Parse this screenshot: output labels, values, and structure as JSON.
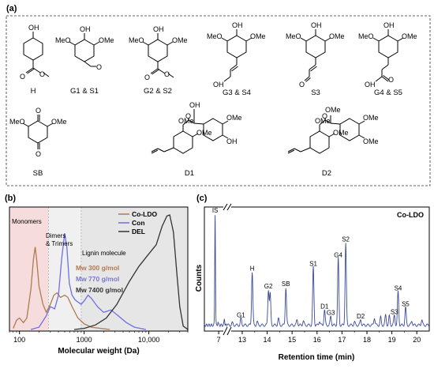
{
  "panel_a": {
    "label": "(a)",
    "structures": [
      {
        "id": "H",
        "label": "H"
      },
      {
        "id": "G1S1",
        "label": "G1 & S1"
      },
      {
        "id": "G2S2",
        "label": "G2 & S2"
      },
      {
        "id": "G3S4",
        "label": "G3 & S4"
      },
      {
        "id": "S3",
        "label": "S3"
      },
      {
        "id": "G4S5",
        "label": "G4 & S5"
      },
      {
        "id": "SB",
        "label": "SB"
      },
      {
        "id": "D1",
        "label": "D1"
      },
      {
        "id": "D2",
        "label": "D2"
      }
    ],
    "atoms": {
      "oh": "OH",
      "ome": "OMe",
      "meo": "MeO",
      "o": "O",
      "oh_short": "OH"
    }
  },
  "chart_data": [
    {
      "type": "line",
      "panel_label": "(b)",
      "xlabel": "Molecular weight (Da)",
      "ylabel": "",
      "xscale": "log",
      "xlim": [
        70,
        40000
      ],
      "xticks": [
        100,
        1000,
        10000
      ],
      "xtick_labels": [
        "100",
        "1000",
        "10,000"
      ],
      "regions": [
        {
          "label": "Monomers",
          "from": 70,
          "to": 280,
          "color": "#f6dcdc"
        },
        {
          "label": "Dimers\n& Trimers",
          "from": 280,
          "to": 900,
          "color": "#f0f0f0"
        },
        {
          "label": "Lignin molecule",
          "from": 900,
          "to": 40000,
          "color": "#e6e6e6"
        }
      ],
      "region_labels": [
        "Monomers",
        "Dimers",
        "& Trimers",
        "Lignin molecule"
      ],
      "legend": {
        "position": "top-right"
      },
      "annotations": [
        {
          "text": "Mw 300 g/mol",
          "color": "#b07a52"
        },
        {
          "text": "Mw 770 g/mol",
          "color": "#7b79c8"
        },
        {
          "text": "Mw 7400 g/mol",
          "color": "#333333"
        }
      ],
      "series": [
        {
          "name": "Co-LDO",
          "color": "#b07a52",
          "points": [
            [
              80,
              0.01
            ],
            [
              90,
              0.08
            ],
            [
              100,
              0.1
            ],
            [
              115,
              0.06
            ],
            [
              130,
              0.1
            ],
            [
              150,
              0.35
            ],
            [
              165,
              0.62
            ],
            [
              175,
              0.72
            ],
            [
              185,
              0.6
            ],
            [
              200,
              0.38
            ],
            [
              230,
              0.22
            ],
            [
              260,
              0.15
            ],
            [
              300,
              0.22
            ],
            [
              340,
              0.3
            ],
            [
              380,
              0.32
            ],
            [
              430,
              0.28
            ],
            [
              500,
              0.3
            ],
            [
              560,
              0.28
            ],
            [
              650,
              0.2
            ],
            [
              800,
              0.1
            ],
            [
              1000,
              0.05
            ],
            [
              1300,
              0.02
            ],
            [
              1800,
              0.01
            ],
            [
              2500,
              0.0
            ]
          ]
        },
        {
          "name": "Con",
          "color": "#6f6fe6",
          "points": [
            [
              150,
              0.0
            ],
            [
              200,
              0.02
            ],
            [
              260,
              0.12
            ],
            [
              300,
              0.2
            ],
            [
              350,
              0.18
            ],
            [
              400,
              0.3
            ],
            [
              450,
              0.62
            ],
            [
              500,
              0.84
            ],
            [
              540,
              0.72
            ],
            [
              590,
              0.4
            ],
            [
              650,
              0.3
            ],
            [
              720,
              0.26
            ],
            [
              800,
              0.24
            ],
            [
              900,
              0.22
            ],
            [
              1000,
              0.25
            ],
            [
              1150,
              0.3
            ],
            [
              1300,
              0.27
            ],
            [
              1600,
              0.2
            ],
            [
              2000,
              0.15
            ],
            [
              2600,
              0.17
            ],
            [
              3200,
              0.13
            ],
            [
              4500,
              0.06
            ],
            [
              6000,
              0.02
            ],
            [
              9000,
              0.0
            ]
          ]
        },
        {
          "name": "DEL",
          "color": "#333333",
          "points": [
            [
              700,
              0.0
            ],
            [
              1000,
              0.01
            ],
            [
              1500,
              0.04
            ],
            [
              2200,
              0.1
            ],
            [
              3200,
              0.22
            ],
            [
              5000,
              0.42
            ],
            [
              7000,
              0.55
            ],
            [
              10000,
              0.66
            ],
            [
              13000,
              0.74
            ],
            [
              16000,
              0.9
            ],
            [
              19000,
              0.99
            ],
            [
              21000,
              1.0
            ],
            [
              24000,
              0.85
            ],
            [
              27000,
              0.5
            ],
            [
              30000,
              0.2
            ],
            [
              34000,
              0.03
            ],
            [
              40000,
              0.0
            ]
          ]
        }
      ]
    },
    {
      "type": "line",
      "panel_label": "(c)",
      "title": "Co-LDO",
      "xlabel": "Retention time (min)",
      "ylabel": "Counts",
      "x_breaks": [
        {
          "from": 7.6,
          "to": 12.4
        }
      ],
      "xticks": [
        7,
        13,
        14,
        15,
        16,
        17,
        18,
        19,
        20
      ],
      "xtick_labels": [
        "7",
        "13",
        "14",
        "15",
        "16",
        "17",
        "18",
        "19",
        "20"
      ],
      "series": [
        {
          "name": "",
          "color": "#3b4a9b",
          "peaks": [
            {
              "x": 6.75,
              "y": 1.0,
              "label": "IS"
            },
            {
              "x": 6.95,
              "y": 0.03,
              "label": ""
            },
            {
              "x": 7.4,
              "y": 0.06,
              "label": ""
            },
            {
              "x": 12.6,
              "y": 0.02,
              "label": ""
            },
            {
              "x": 12.95,
              "y": 0.06,
              "label": "G1"
            },
            {
              "x": 13.4,
              "y": 0.48,
              "label": "H"
            },
            {
              "x": 13.6,
              "y": 0.03,
              "label": ""
            },
            {
              "x": 14.05,
              "y": 0.32,
              "label": "G2"
            },
            {
              "x": 14.12,
              "y": 0.28,
              "label": ""
            },
            {
              "x": 14.45,
              "y": 0.06,
              "label": ""
            },
            {
              "x": 14.75,
              "y": 0.34,
              "label": "SB"
            },
            {
              "x": 15.2,
              "y": 0.05,
              "label": ""
            },
            {
              "x": 15.45,
              "y": 0.04,
              "label": ""
            },
            {
              "x": 15.85,
              "y": 0.52,
              "label": "S1"
            },
            {
              "x": 16.1,
              "y": 0.04,
              "label": ""
            },
            {
              "x": 16.3,
              "y": 0.14,
              "label": "D1"
            },
            {
              "x": 16.55,
              "y": 0.08,
              "label": "G3"
            },
            {
              "x": 16.85,
              "y": 0.6,
              "label": "G4"
            },
            {
              "x": 17.15,
              "y": 0.74,
              "label": "S2"
            },
            {
              "x": 17.5,
              "y": 0.03,
              "label": ""
            },
            {
              "x": 17.75,
              "y": 0.05,
              "label": "D2"
            },
            {
              "x": 18.3,
              "y": 0.07,
              "label": ""
            },
            {
              "x": 18.55,
              "y": 0.07,
              "label": ""
            },
            {
              "x": 18.75,
              "y": 0.09,
              "label": ""
            },
            {
              "x": 18.9,
              "y": 0.08,
              "label": ""
            },
            {
              "x": 19.1,
              "y": 0.09,
              "label": "S3"
            },
            {
              "x": 19.25,
              "y": 0.3,
              "label": "S4"
            },
            {
              "x": 19.55,
              "y": 0.16,
              "label": "S5"
            },
            {
              "x": 19.8,
              "y": 0.04,
              "label": ""
            },
            {
              "x": 20.2,
              "y": 0.05,
              "label": ""
            }
          ]
        }
      ]
    }
  ]
}
